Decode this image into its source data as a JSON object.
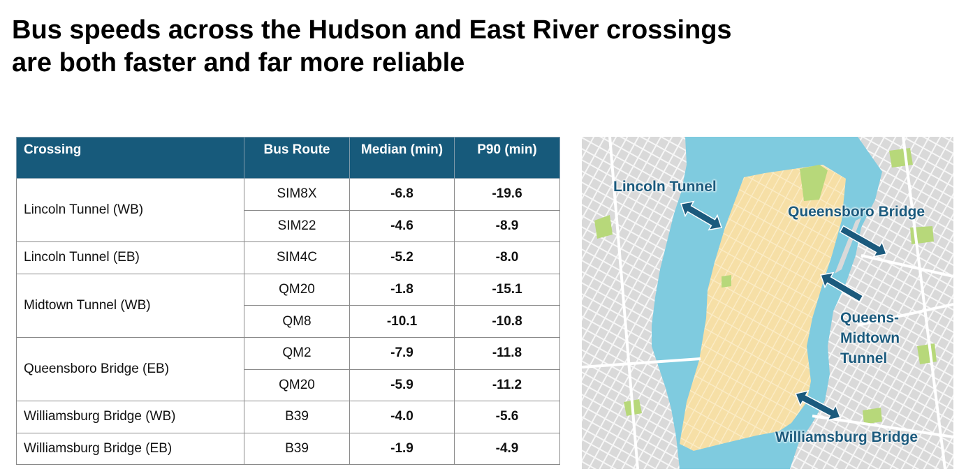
{
  "title": {
    "line1": "Bus speeds across the Hudson and East River crossings",
    "line2": "are both faster and far more reliable"
  },
  "table": {
    "headers": {
      "crossing": "Crossing",
      "route": "Bus Route",
      "median": "Median (min)",
      "p90": "P90 (min)"
    },
    "groups": [
      {
        "crossing": "Lincoln Tunnel (WB)",
        "rows": [
          {
            "route": "SIM8X",
            "median": "-6.8",
            "p90": "-19.6"
          },
          {
            "route": "SIM22",
            "median": "-4.6",
            "p90": "-8.9"
          }
        ]
      },
      {
        "crossing": "Lincoln Tunnel (EB)",
        "rows": [
          {
            "route": "SIM4C",
            "median": "-5.2",
            "p90": "-8.0"
          }
        ]
      },
      {
        "crossing": "Midtown Tunnel (WB)",
        "rows": [
          {
            "route": "QM20",
            "median": "-1.8",
            "p90": "-15.1"
          },
          {
            "route": "QM8",
            "median": "-10.1",
            "p90": "-10.8"
          }
        ]
      },
      {
        "crossing": "Queensboro Bridge (EB)",
        "rows": [
          {
            "route": "QM2",
            "median": "-7.9",
            "p90": "-11.8"
          },
          {
            "route": "QM20",
            "median": "-5.9",
            "p90": "-11.2"
          }
        ]
      },
      {
        "crossing": "Williamsburg Bridge (WB)",
        "rows": [
          {
            "route": "B39",
            "median": "-4.0",
            "p90": "-5.6"
          }
        ]
      },
      {
        "crossing": "Williamsburg Bridge (EB)",
        "rows": [
          {
            "route": "B39",
            "median": "-1.9",
            "p90": "-4.9"
          }
        ]
      }
    ]
  },
  "map": {
    "labels": {
      "lincoln": "Lincoln Tunnel",
      "queensboro": "Queensboro Bridge",
      "midtown": "Queens-\nMidtown\nTunnel",
      "williamsburg": "Williamsburg Bridge"
    },
    "colors": {
      "water": "#7fcbdf",
      "land": "#d9d9d9",
      "street": "#f7f7f7",
      "manhattan": "#f6dfa6",
      "park": "#b7d87a",
      "arrow": "#1b5a7d",
      "header": "#175a7b"
    }
  }
}
